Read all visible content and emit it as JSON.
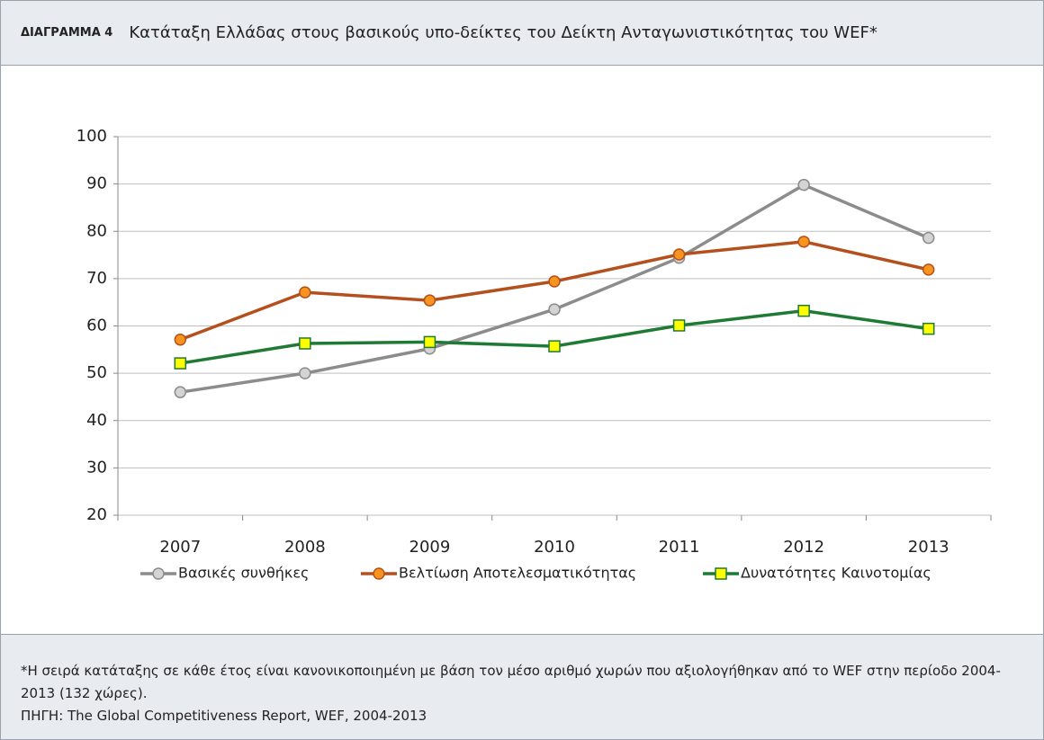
{
  "header": {
    "label": "ΔΙΑΓΡΑΜΜΑ 4",
    "title": "Κατάταξη Ελλάδας στους βασικούς υπο-δείκτες του Δείκτη Ανταγωνιστικότητας του WEF*"
  },
  "chart_data": {
    "type": "line",
    "categories": [
      "2007",
      "2008",
      "2009",
      "2010",
      "2011",
      "2012",
      "2013"
    ],
    "series": [
      {
        "name": "Βασικές συνθήκες",
        "color": "#8c8c8c",
        "marker": "circle",
        "marker_fill": "#d4d4d4",
        "values": [
          46.0,
          50.0,
          55.2,
          63.5,
          74.4,
          89.8,
          78.6
        ]
      },
      {
        "name": "Βελτίωση Αποτελεσματικότητας",
        "color": "#b4501e",
        "marker": "circle",
        "marker_fill": "#f7941d",
        "values": [
          57.1,
          67.1,
          65.4,
          69.4,
          75.1,
          77.8,
          71.9
        ]
      },
      {
        "name": "Δυνατότητες Καινοτομίας",
        "color": "#1e7a34",
        "marker": "square",
        "marker_fill": "#ffff00",
        "values": [
          52.1,
          56.3,
          56.6,
          55.7,
          60.1,
          63.2,
          59.4
        ]
      }
    ],
    "ylim": [
      20,
      100
    ],
    "yticks": [
      20,
      30,
      40,
      50,
      60,
      70,
      80,
      90,
      100
    ],
    "grid": true,
    "legend": "bottom"
  },
  "footer": {
    "notes": [
      "*Η σειρά κατάταξης σε κάθε έτος είναι κανονικοποιημένη με βάση τον μέσο αριθμό χωρών που αξιολογήθηκαν από το WEF στην περίοδο 2004-2013 (132 χώρες).",
      "ΠΗΓΗ: The Global Competitiveness Report, WEF, 2004-2013"
    ]
  }
}
